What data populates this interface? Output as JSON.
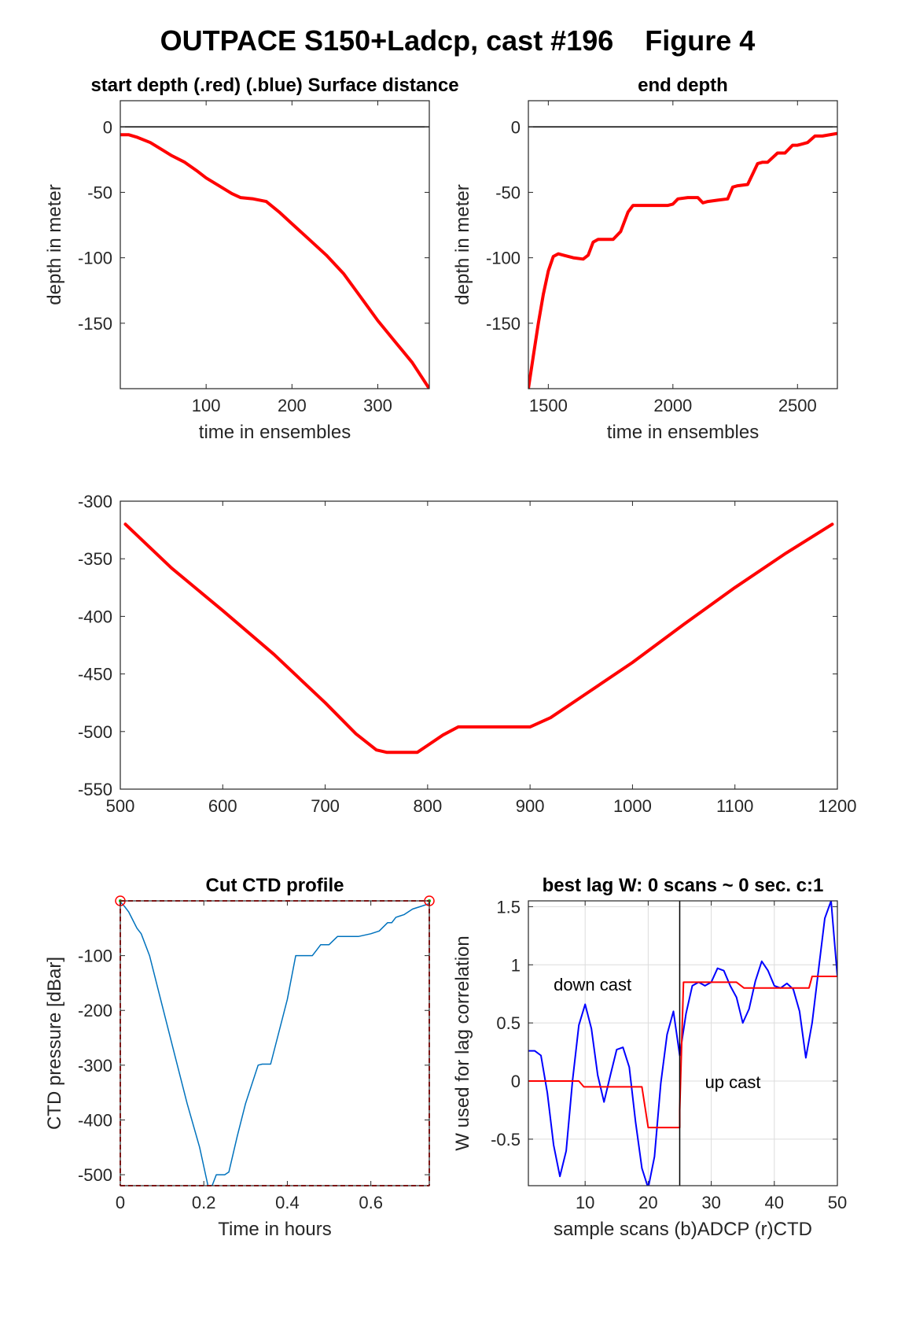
{
  "figure": {
    "title": "OUTPACE S150+Ladcp, cast #196    Figure 4"
  },
  "chart_data": [
    {
      "type": "line",
      "title": "start depth (.red) (.blue) Surface distance",
      "xlabel": "time in ensembles",
      "ylabel": "depth in meter",
      "xlim": [
        0,
        360
      ],
      "ylim": [
        -200,
        20
      ],
      "xticks": [
        100,
        200,
        300
      ],
      "yticks": [
        0,
        -50,
        -100,
        -150
      ],
      "ref_line_y": 0,
      "series": [
        {
          "color": "#ff0000",
          "x": [
            0,
            10,
            20,
            35,
            50,
            60,
            75,
            90,
            100,
            115,
            130,
            140,
            155,
            170,
            185,
            200,
            220,
            240,
            260,
            280,
            300,
            320,
            340,
            360
          ],
          "y": [
            -6,
            -6,
            -8,
            -12,
            -18,
            -22,
            -27,
            -34,
            -39,
            -45,
            -51,
            -54,
            -55,
            -57,
            -65,
            -74,
            -86,
            -98,
            -112,
            -130,
            -148,
            -164,
            -180,
            -200
          ]
        }
      ]
    },
    {
      "type": "line",
      "title": "end depth",
      "xlabel": "time in ensembles",
      "ylabel": "depth in meter",
      "xlim": [
        1420,
        2660
      ],
      "ylim": [
        -200,
        20
      ],
      "xticks": [
        1500,
        2000,
        2500
      ],
      "yticks": [
        0,
        -50,
        -100,
        -150
      ],
      "ref_line_y": 0,
      "series": [
        {
          "color": "#ff0000",
          "x": [
            1420,
            1440,
            1460,
            1480,
            1500,
            1520,
            1540,
            1560,
            1600,
            1640,
            1660,
            1680,
            1700,
            1720,
            1760,
            1790,
            1820,
            1840,
            1900,
            1980,
            2000,
            2020,
            2060,
            2100,
            2120,
            2140,
            2180,
            2220,
            2240,
            2260,
            2300,
            2340,
            2360,
            2380,
            2420,
            2450,
            2480,
            2500,
            2540,
            2570,
            2600,
            2660
          ],
          "y": [
            -200,
            -175,
            -150,
            -128,
            -110,
            -99,
            -97,
            -98,
            -100,
            -101,
            -98,
            -88,
            -86,
            -86,
            -86,
            -80,
            -65,
            -60,
            -60,
            -60,
            -59,
            -55,
            -54,
            -54,
            -58,
            -57,
            -56,
            -55,
            -46,
            -45,
            -44,
            -28,
            -27,
            -27,
            -20,
            -20,
            -14,
            -14,
            -12,
            -7,
            -7,
            -5
          ]
        }
      ]
    },
    {
      "type": "line",
      "title": "",
      "xlabel": "",
      "ylabel": "",
      "xlim": [
        500,
        1200
      ],
      "ylim": [
        -550,
        -300
      ],
      "xticks": [
        500,
        600,
        700,
        800,
        900,
        1000,
        1100,
        1200
      ],
      "yticks": [
        -300,
        -350,
        -400,
        -450,
        -500,
        -550
      ],
      "series": [
        {
          "color": "#ff0000",
          "x": [
            505,
            550,
            600,
            650,
            700,
            730,
            750,
            760,
            780,
            790,
            800,
            815,
            830,
            860,
            900,
            920,
            950,
            1000,
            1050,
            1100,
            1150,
            1195
          ],
          "y": [
            -320,
            -358,
            -395,
            -433,
            -475,
            -502,
            -516,
            -518,
            -518,
            -518,
            -512,
            -503,
            -496,
            -496,
            -496,
            -488,
            -470,
            -440,
            -407,
            -375,
            -345,
            -320
          ]
        }
      ]
    },
    {
      "type": "line",
      "title": "Cut CTD profile",
      "xlabel": "Time in hours",
      "ylabel": "CTD pressure [dBar]",
      "xlim": [
        0,
        0.74
      ],
      "ylim": [
        -520,
        0
      ],
      "xticks": [
        0,
        0.2,
        0.4,
        0.6
      ],
      "yticks": [
        -100,
        -200,
        -300,
        -400,
        -500
      ],
      "series": [
        {
          "color": "#0072bd",
          "x": [
            0,
            0.01,
            0.02,
            0.03,
            0.04,
            0.05,
            0.07,
            0.1,
            0.13,
            0.16,
            0.19,
            0.21,
            0.22,
            0.23,
            0.25,
            0.26,
            0.28,
            0.3,
            0.33,
            0.34,
            0.36,
            0.4,
            0.42,
            0.44,
            0.46,
            0.47,
            0.48,
            0.5,
            0.52,
            0.55,
            0.57,
            0.6,
            0.62,
            0.64,
            0.65,
            0.66,
            0.68,
            0.7,
            0.72,
            0.74
          ],
          "y": [
            -2,
            -10,
            -20,
            -35,
            -50,
            -60,
            -100,
            -190,
            -280,
            -370,
            -450,
            -520,
            -520,
            -500,
            -500,
            -495,
            -430,
            -370,
            -300,
            -298,
            -298,
            -180,
            -100,
            -100,
            -100,
            -90,
            -80,
            -80,
            -65,
            -65,
            -65,
            -60,
            -55,
            -40,
            -40,
            -30,
            -25,
            -15,
            -10,
            -5
          ]
        }
      ],
      "markers": [
        {
          "x": 0,
          "y": 0
        },
        {
          "x": 0.74,
          "y": 0
        }
      ]
    },
    {
      "type": "line",
      "title": "best lag W: 0 scans ~ 0 sec.  c:1",
      "xlabel": "sample scans (b)ADCP (r)CTD",
      "ylabel": "W used for lag correlation",
      "xlim": [
        1,
        50
      ],
      "ylim": [
        -0.9,
        1.55
      ],
      "xticks": [
        10,
        20,
        30,
        40,
        50
      ],
      "yticks": [
        1.5,
        1,
        0.5,
        0,
        -0.5
      ],
      "grid": true,
      "divider_x": 25,
      "annotations": [
        {
          "text": "down cast",
          "x": 5,
          "y": 0.78
        },
        {
          "text": "up cast",
          "x": 29,
          "y": -0.06
        }
      ],
      "series": [
        {
          "color": "#0000ff",
          "x": [
            1,
            2,
            3,
            4,
            5,
            6,
            7,
            8,
            9,
            10,
            11,
            12,
            13,
            14,
            15,
            16,
            17,
            18,
            19,
            20,
            21,
            22,
            23,
            24,
            25,
            26,
            27,
            28,
            29,
            30,
            31,
            32,
            33,
            34,
            35,
            36,
            37,
            38,
            39,
            40,
            41,
            42,
            43,
            44,
            45,
            46,
            47,
            48,
            49,
            50
          ],
          "y": [
            0.26,
            0.26,
            0.22,
            -0.1,
            -0.55,
            -0.82,
            -0.6,
            0.0,
            0.48,
            0.66,
            0.45,
            0.05,
            -0.18,
            0.05,
            0.27,
            0.29,
            0.12,
            -0.35,
            -0.75,
            -0.92,
            -0.65,
            -0.02,
            0.4,
            0.6,
            0.22,
            0.58,
            0.82,
            0.85,
            0.82,
            0.85,
            0.97,
            0.95,
            0.82,
            0.72,
            0.5,
            0.62,
            0.86,
            1.03,
            0.95,
            0.82,
            0.8,
            0.84,
            0.79,
            0.6,
            0.2,
            0.5,
            0.95,
            1.4,
            1.55,
            0.9
          ]
        },
        {
          "color": "#ff0000",
          "x": [
            1,
            9,
            9.8,
            10,
            19,
            20,
            20.2,
            25,
            25,
            25.6,
            26,
            34,
            35.2,
            45,
            45.5,
            46,
            50
          ],
          "y": [
            0,
            0,
            -0.05,
            -0.05,
            -0.05,
            -0.4,
            -0.4,
            -0.4,
            -0.25,
            0.85,
            0.85,
            0.85,
            0.8,
            0.8,
            0.8,
            0.9,
            0.9
          ]
        }
      ]
    }
  ]
}
